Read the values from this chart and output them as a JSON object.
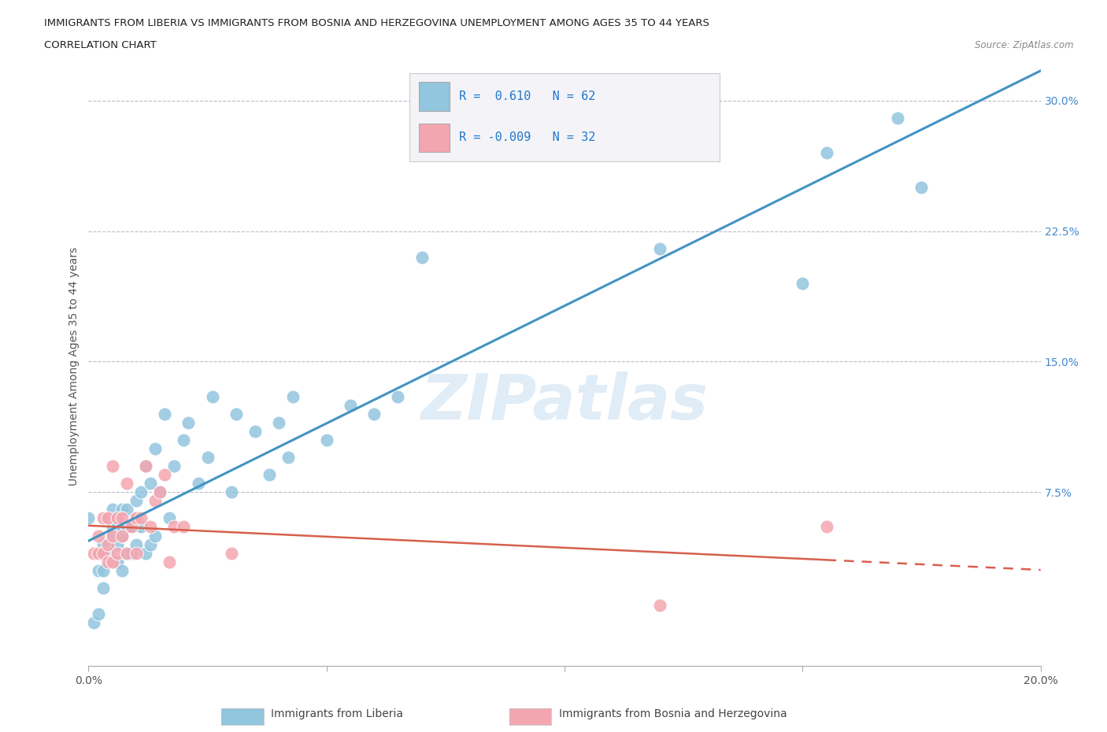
{
  "title_line1": "IMMIGRANTS FROM LIBERIA VS IMMIGRANTS FROM BOSNIA AND HERZEGOVINA UNEMPLOYMENT AMONG AGES 35 TO 44 YEARS",
  "title_line2": "CORRELATION CHART",
  "source": "Source: ZipAtlas.com",
  "ylabel": "Unemployment Among Ages 35 to 44 years",
  "xlim": [
    0,
    0.2
  ],
  "ylim": [
    -0.025,
    0.32
  ],
  "xticks": [
    0.0,
    0.05,
    0.1,
    0.15,
    0.2
  ],
  "yticks_right": [
    0.075,
    0.15,
    0.225,
    0.3
  ],
  "ytick_labels_right": [
    "7.5%",
    "15.0%",
    "22.5%",
    "30.0%"
  ],
  "legend1_label": "Immigrants from Liberia",
  "legend2_label": "Immigrants from Bosnia and Herzegovina",
  "R1": 0.61,
  "N1": 62,
  "R2": -0.009,
  "N2": 32,
  "color_liberia": "#92c5de",
  "color_bosnia": "#f4a6b0",
  "color_line_liberia": "#4393c3",
  "color_line_bosnia": "#d6604d",
  "watermark": "ZIPatlas",
  "liberia_x": [
    0.0,
    0.001,
    0.002,
    0.002,
    0.003,
    0.003,
    0.003,
    0.004,
    0.004,
    0.005,
    0.005,
    0.005,
    0.005,
    0.006,
    0.006,
    0.006,
    0.007,
    0.007,
    0.007,
    0.007,
    0.008,
    0.008,
    0.008,
    0.009,
    0.009,
    0.01,
    0.01,
    0.01,
    0.011,
    0.011,
    0.012,
    0.012,
    0.013,
    0.013,
    0.014,
    0.014,
    0.015,
    0.016,
    0.017,
    0.018,
    0.02,
    0.021,
    0.023,
    0.025,
    0.026,
    0.03,
    0.031,
    0.035,
    0.038,
    0.04,
    0.042,
    0.043,
    0.05,
    0.055,
    0.06,
    0.065,
    0.07,
    0.12,
    0.15,
    0.155,
    0.17,
    0.175
  ],
  "liberia_y": [
    0.06,
    0.0,
    0.005,
    0.03,
    0.02,
    0.03,
    0.045,
    0.04,
    0.06,
    0.035,
    0.05,
    0.055,
    0.065,
    0.035,
    0.045,
    0.055,
    0.03,
    0.05,
    0.055,
    0.065,
    0.04,
    0.055,
    0.065,
    0.04,
    0.055,
    0.045,
    0.06,
    0.07,
    0.055,
    0.075,
    0.04,
    0.09,
    0.045,
    0.08,
    0.05,
    0.1,
    0.075,
    0.12,
    0.06,
    0.09,
    0.105,
    0.115,
    0.08,
    0.095,
    0.13,
    0.075,
    0.12,
    0.11,
    0.085,
    0.115,
    0.095,
    0.13,
    0.105,
    0.125,
    0.12,
    0.13,
    0.21,
    0.215,
    0.195,
    0.27,
    0.29,
    0.25
  ],
  "bosnia_x": [
    0.001,
    0.002,
    0.002,
    0.003,
    0.003,
    0.004,
    0.004,
    0.004,
    0.005,
    0.005,
    0.005,
    0.006,
    0.006,
    0.007,
    0.007,
    0.008,
    0.008,
    0.009,
    0.01,
    0.01,
    0.011,
    0.012,
    0.013,
    0.014,
    0.015,
    0.016,
    0.017,
    0.018,
    0.02,
    0.03,
    0.12,
    0.155
  ],
  "bosnia_y": [
    0.04,
    0.04,
    0.05,
    0.04,
    0.06,
    0.035,
    0.045,
    0.06,
    0.035,
    0.05,
    0.09,
    0.04,
    0.06,
    0.05,
    0.06,
    0.04,
    0.08,
    0.055,
    0.04,
    0.06,
    0.06,
    0.09,
    0.055,
    0.07,
    0.075,
    0.085,
    0.035,
    0.055,
    0.055,
    0.04,
    0.01,
    0.055
  ]
}
